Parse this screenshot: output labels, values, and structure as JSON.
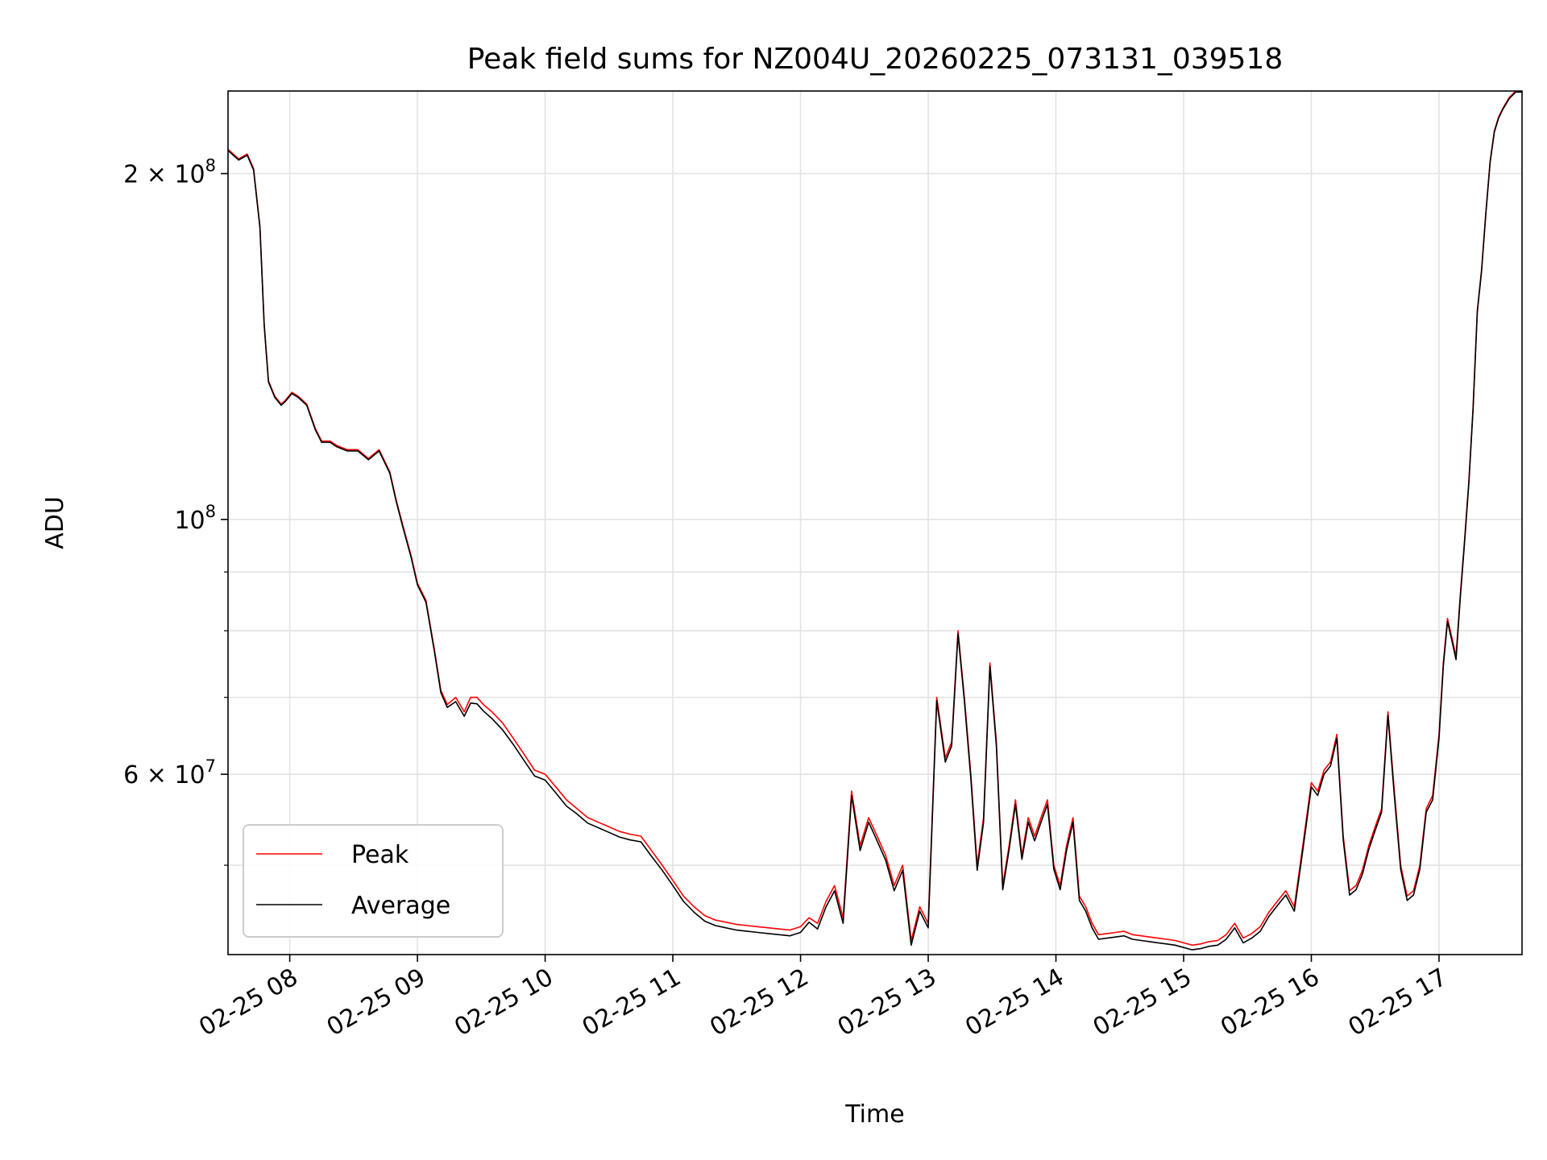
{
  "chart_data": {
    "type": "line",
    "title": "Peak field sums for NZ004U_20260225_073131_039518",
    "xlabel": "Time",
    "ylabel": "ADU",
    "yscale": "log",
    "grid": true,
    "legend_position": "lower-left",
    "xlim": [
      "2026-02-25 07:31",
      "2026-02-25 17:39"
    ],
    "ylim": [
      41800000,
      236000000
    ],
    "x_tick_labels": [
      "02-25 08",
      "02-25 09",
      "02-25 10",
      "02-25 11",
      "02-25 12",
      "02-25 13",
      "02-25 14",
      "02-25 15",
      "02-25 16",
      "02-25 17"
    ],
    "x_ticks": [
      "2026-02-25 08:00",
      "2026-02-25 09:00",
      "2026-02-25 10:00",
      "2026-02-25 11:00",
      "2026-02-25 12:00",
      "2026-02-25 13:00",
      "2026-02-25 14:00",
      "2026-02-25 15:00",
      "2026-02-25 16:00",
      "2026-02-25 17:00"
    ],
    "y_major_ticks": [
      {
        "value": 200000000,
        "label_base": "2 × 10",
        "label_exp": "8"
      },
      {
        "value": 100000000,
        "label_base": "10",
        "label_exp": "8"
      },
      {
        "value": 60000000,
        "label_base": "6 × 10",
        "label_exp": "7"
      }
    ],
    "y_minor_ticks": [
      50000000,
      70000000,
      80000000,
      90000000
    ],
    "series": [
      {
        "name": "Peak",
        "color": "#ff0000",
        "x": [
          "07:31",
          "07:36",
          "07:40",
          "07:43",
          "07:46",
          "07:48",
          "07:50",
          "07:53",
          "07:56",
          "07:58",
          "08:01",
          "08:04",
          "08:08",
          "08:12",
          "08:15",
          "08:19",
          "08:22",
          "08:27",
          "08:32",
          "08:37",
          "08:42",
          "08:47",
          "08:50",
          "08:53",
          "08:57",
          "09:00",
          "09:04",
          "09:08",
          "09:11",
          "09:14",
          "09:18",
          "09:22",
          "09:25",
          "09:28",
          "09:31",
          "09:35",
          "09:40",
          "09:45",
          "09:50",
          "09:55",
          "10:00",
          "10:05",
          "10:10",
          "10:15",
          "10:20",
          "10:25",
          "10:30",
          "10:35",
          "10:40",
          "10:45",
          "10:50",
          "10:55",
          "11:00",
          "11:05",
          "11:10",
          "11:15",
          "11:20",
          "11:25",
          "11:30",
          "11:35",
          "11:40",
          "11:45",
          "11:50",
          "11:55",
          "12:00",
          "12:04",
          "12:08",
          "12:12",
          "12:16",
          "12:20",
          "12:24",
          "12:28",
          "12:32",
          "12:36",
          "12:40",
          "12:44",
          "12:48",
          "12:52",
          "12:56",
          "13:00",
          "13:04",
          "13:08",
          "13:11",
          "13:14",
          "13:17",
          "13:20",
          "13:23",
          "13:26",
          "13:29",
          "13:32",
          "13:35",
          "13:38",
          "13:41",
          "13:44",
          "13:47",
          "13:50",
          "13:53",
          "13:56",
          "13:59",
          "14:02",
          "14:05",
          "14:08",
          "14:11",
          "14:14",
          "14:17",
          "14:20",
          "14:24",
          "14:28",
          "14:32",
          "14:36",
          "14:40",
          "14:44",
          "14:48",
          "14:52",
          "14:56",
          "15:00",
          "15:04",
          "15:08",
          "15:12",
          "15:16",
          "15:20",
          "15:24",
          "15:28",
          "15:32",
          "15:36",
          "15:40",
          "15:44",
          "15:48",
          "15:52",
          "15:56",
          "16:00",
          "16:03",
          "16:06",
          "16:09",
          "16:12",
          "16:15",
          "16:18",
          "16:21",
          "16:24",
          "16:27",
          "16:30",
          "16:33",
          "16:36",
          "16:39",
          "16:42",
          "16:45",
          "16:48",
          "16:51",
          "16:54",
          "16:57",
          "17:00",
          "17:02",
          "17:04",
          "17:06",
          "17:08",
          "17:10",
          "17:12",
          "17:14",
          "17:16",
          "17:18",
          "17:20",
          "17:22",
          "17:24",
          "17:26",
          "17:28",
          "17:30",
          "17:33",
          "17:36",
          "17:39"
        ],
        "y": [
          210000000,
          206000000,
          208000000,
          202000000,
          180000000,
          148000000,
          132000000,
          128000000,
          126000000,
          127000000,
          129000000,
          128000000,
          126000000,
          120000000,
          117000000,
          117000000,
          116000000,
          115000000,
          115000000,
          113000000,
          115000000,
          110000000,
          104000000,
          99000000,
          93000000,
          88000000,
          85000000,
          77000000,
          71000000,
          69000000,
          70000000,
          68000000,
          70000000,
          70000000,
          69000000,
          68000000,
          66500000,
          64500000,
          62500000,
          60500000,
          60000000,
          58500000,
          57000000,
          56000000,
          55000000,
          54500000,
          54000000,
          53500000,
          53200000,
          53000000,
          51500000,
          50000000,
          48500000,
          47000000,
          46000000,
          45200000,
          44800000,
          44600000,
          44400000,
          44300000,
          44200000,
          44100000,
          44000000,
          43900000,
          44200000,
          45000000,
          44500000,
          46500000,
          48000000,
          45000000,
          58000000,
          52000000,
          55000000,
          53000000,
          51000000,
          48000000,
          50000000,
          43000000,
          46000000,
          44500000,
          70000000,
          62000000,
          64000000,
          80000000,
          70000000,
          60000000,
          50000000,
          55000000,
          75000000,
          64000000,
          48000000,
          52000000,
          57000000,
          51000000,
          55000000,
          53000000,
          55000000,
          57000000,
          50000000,
          48000000,
          52000000,
          55000000,
          47000000,
          46000000,
          44500000,
          43500000,
          43600000,
          43700000,
          43800000,
          43500000,
          43400000,
          43300000,
          43200000,
          43100000,
          43000000,
          42800000,
          42600000,
          42700000,
          42900000,
          43000000,
          43500000,
          44500000,
          43200000,
          43600000,
          44200000,
          45500000,
          46500000,
          47500000,
          46000000,
          52000000,
          59000000,
          58000000,
          60500000,
          61500000,
          65000000,
          53000000,
          47500000,
          48000000,
          49500000,
          52000000,
          54000000,
          56000000,
          68000000,
          58000000,
          50000000,
          47000000,
          47500000,
          50000000,
          56000000,
          57500000,
          65000000,
          75000000,
          82000000,
          79000000,
          76000000,
          86000000,
          96000000,
          108000000,
          125000000,
          152000000,
          165000000,
          185000000,
          205000000,
          218000000,
          224000000,
          228000000,
          233000000,
          236000000,
          236000000
        ]
      },
      {
        "name": "Average",
        "color": "#000000",
        "x": [
          "07:31",
          "07:36",
          "07:40",
          "07:43",
          "07:46",
          "07:48",
          "07:50",
          "07:53",
          "07:56",
          "07:58",
          "08:01",
          "08:04",
          "08:08",
          "08:12",
          "08:15",
          "08:19",
          "08:22",
          "08:27",
          "08:32",
          "08:37",
          "08:42",
          "08:47",
          "08:50",
          "08:53",
          "08:57",
          "09:00",
          "09:04",
          "09:08",
          "09:11",
          "09:14",
          "09:18",
          "09:22",
          "09:25",
          "09:28",
          "09:31",
          "09:35",
          "09:40",
          "09:45",
          "09:50",
          "09:55",
          "10:00",
          "10:05",
          "10:10",
          "10:15",
          "10:20",
          "10:25",
          "10:30",
          "10:35",
          "10:40",
          "10:45",
          "10:50",
          "10:55",
          "11:00",
          "11:05",
          "11:10",
          "11:15",
          "11:20",
          "11:25",
          "11:30",
          "11:35",
          "11:40",
          "11:45",
          "11:50",
          "11:55",
          "12:00",
          "12:04",
          "12:08",
          "12:12",
          "12:16",
          "12:20",
          "12:24",
          "12:28",
          "12:32",
          "12:36",
          "12:40",
          "12:44",
          "12:48",
          "12:52",
          "12:56",
          "13:00",
          "13:04",
          "13:08",
          "13:11",
          "13:14",
          "13:17",
          "13:20",
          "13:23",
          "13:26",
          "13:29",
          "13:32",
          "13:35",
          "13:38",
          "13:41",
          "13:44",
          "13:47",
          "13:50",
          "13:53",
          "13:56",
          "13:59",
          "14:02",
          "14:05",
          "14:08",
          "14:11",
          "14:14",
          "14:17",
          "14:20",
          "14:24",
          "14:28",
          "14:32",
          "14:36",
          "14:40",
          "14:44",
          "14:48",
          "14:52",
          "14:56",
          "15:00",
          "15:04",
          "15:08",
          "15:12",
          "15:16",
          "15:20",
          "15:24",
          "15:28",
          "15:32",
          "15:36",
          "15:40",
          "15:44",
          "15:48",
          "15:52",
          "15:56",
          "16:00",
          "16:03",
          "16:06",
          "16:09",
          "16:12",
          "16:15",
          "16:18",
          "16:21",
          "16:24",
          "16:27",
          "16:30",
          "16:33",
          "16:36",
          "16:39",
          "16:42",
          "16:45",
          "16:48",
          "16:51",
          "16:54",
          "16:57",
          "17:00",
          "17:02",
          "17:04",
          "17:06",
          "17:08",
          "17:10",
          "17:12",
          "17:14",
          "17:16",
          "17:18",
          "17:20",
          "17:22",
          "17:24",
          "17:26",
          "17:28",
          "17:30",
          "17:33",
          "17:36",
          "17:39"
        ],
        "y": [
          209500000,
          205500000,
          207500000,
          201500000,
          179500000,
          147500000,
          131700000,
          127700000,
          125700000,
          126700000,
          128700000,
          127700000,
          125700000,
          119700000,
          116700000,
          116700000,
          115700000,
          114700000,
          114700000,
          112700000,
          114700000,
          109700000,
          103700000,
          98700000,
          92700000,
          87700000,
          84700000,
          76700000,
          70700000,
          68600000,
          69400000,
          67400000,
          69200000,
          69100000,
          68100000,
          67100000,
          65600000,
          63700000,
          61700000,
          59800000,
          59300000,
          57800000,
          56300000,
          55400000,
          54400000,
          53900000,
          53400000,
          52900000,
          52600000,
          52400000,
          50900000,
          49500000,
          48000000,
          46500000,
          45500000,
          44700000,
          44300000,
          44100000,
          43900000,
          43800000,
          43700000,
          43600000,
          43500000,
          43400000,
          43700000,
          44600000,
          44000000,
          46000000,
          47500000,
          44500000,
          57500000,
          51500000,
          54500000,
          52500000,
          50500000,
          47500000,
          49500000,
          42600000,
          45600000,
          44100000,
          69500000,
          61500000,
          63500000,
          79500000,
          69500000,
          59500000,
          49500000,
          54500000,
          74500000,
          63500000,
          47600000,
          51600000,
          56500000,
          50600000,
          54500000,
          52500000,
          54500000,
          56500000,
          49600000,
          47600000,
          51500000,
          54500000,
          46600000,
          45600000,
          44100000,
          43100000,
          43200000,
          43300000,
          43400000,
          43100000,
          43000000,
          42900000,
          42800000,
          42700000,
          42600000,
          42400000,
          42200000,
          42300000,
          42500000,
          42600000,
          43100000,
          44100000,
          42800000,
          43200000,
          43800000,
          45100000,
          46100000,
          47100000,
          45600000,
          51500000,
          58500000,
          57500000,
          60000000,
          61000000,
          64500000,
          52600000,
          47100000,
          47600000,
          49100000,
          51600000,
          53600000,
          55600000,
          67500000,
          57500000,
          49600000,
          46600000,
          47100000,
          49600000,
          55600000,
          57000000,
          64500000,
          74500000,
          81500000,
          78500000,
          75500000,
          85500000,
          95500000,
          107500000,
          124500000,
          151500000,
          164500000,
          184500000,
          204500000,
          217500000,
          223500000,
          227500000,
          232500000,
          235500000,
          235500000
        ]
      }
    ]
  }
}
